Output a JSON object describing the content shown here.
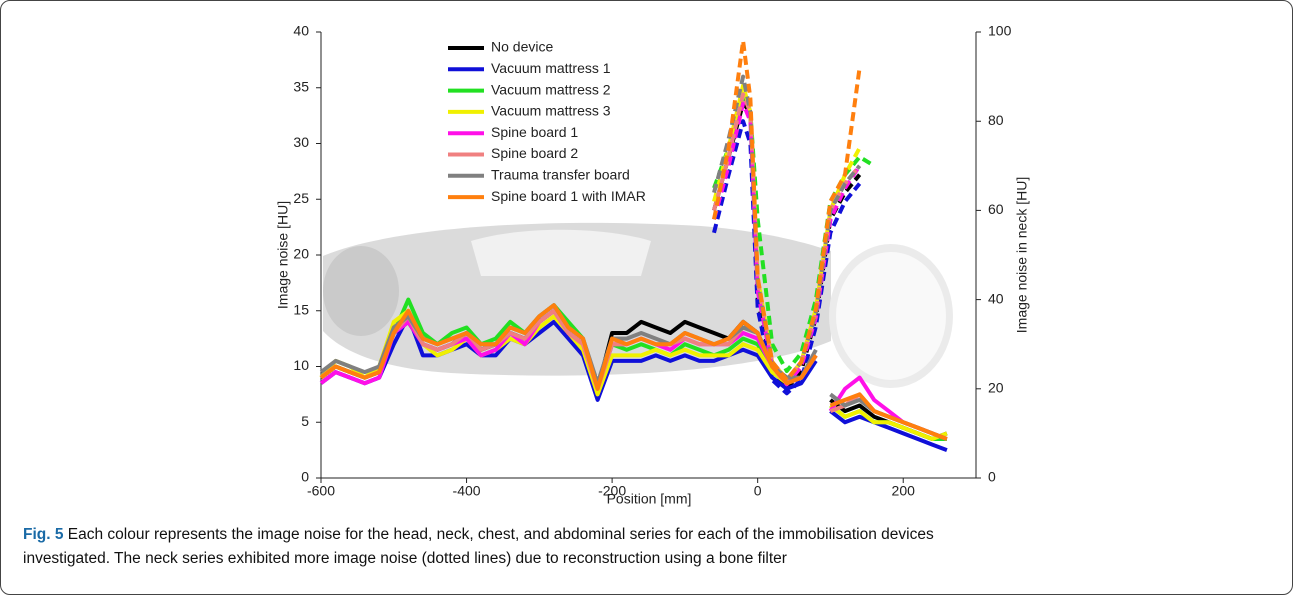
{
  "chart_data": {
    "type": "line",
    "xlabel": "Position [mm]",
    "ylabel": "Image noise [HU]",
    "y2label": "Image noise in neck [HU]",
    "xlim": [
      -600,
      300
    ],
    "xticks": [
      -600,
      -400,
      -200,
      0,
      200
    ],
    "ylim": [
      0,
      40
    ],
    "yticks": [
      0,
      5,
      10,
      15,
      20,
      25,
      30,
      35,
      40
    ],
    "y2lim": [
      0,
      100
    ],
    "y2ticks": [
      0,
      20,
      40,
      60,
      80,
      100
    ],
    "x": [
      -600,
      -580,
      -560,
      -540,
      -520,
      -500,
      -480,
      -460,
      -440,
      -420,
      -400,
      -380,
      -360,
      -340,
      -320,
      -300,
      -280,
      -260,
      -240,
      -220,
      -200,
      -180,
      -160,
      -140,
      -120,
      -100,
      -80,
      -60,
      -40,
      -20,
      0,
      20,
      40,
      60,
      80,
      90,
      100,
      120,
      140,
      160,
      180,
      200,
      220,
      240,
      260
    ],
    "neck_x": [
      -60,
      -40,
      -20,
      -10,
      0,
      20,
      40,
      60,
      80,
      100,
      120,
      140,
      160
    ],
    "legend": "upper left",
    "series": [
      {
        "name": "No device",
        "color": "#000000",
        "values": [
          9,
          10,
          9.5,
          9,
          9.5,
          13,
          14,
          12,
          11.5,
          12,
          13,
          11.5,
          12,
          13,
          12.5,
          14,
          15,
          13,
          12,
          8,
          13,
          13,
          14,
          13.5,
          13,
          14,
          13.5,
          13,
          12.5,
          14,
          13,
          10,
          9,
          9,
          11,
          null,
          7,
          6,
          6.5,
          5.5,
          5,
          4.5,
          4,
          3.5,
          4
        ],
        "neck_values": [
          60,
          72,
          84,
          82,
          40,
          24,
          20,
          24,
          36,
          58,
          64,
          68,
          null
        ]
      },
      {
        "name": "Vacuum mattress 1",
        "color": "#1010d8",
        "values": [
          8.5,
          9.5,
          9,
          8.5,
          9,
          12,
          14.5,
          11,
          11,
          11.5,
          12,
          11,
          11,
          12.5,
          12,
          13,
          14,
          12.5,
          11,
          7,
          10.5,
          10.5,
          10.5,
          11,
          10.5,
          11,
          10.5,
          10.5,
          11,
          11.5,
          11,
          9,
          8,
          8.5,
          10.5,
          null,
          6,
          5,
          5.5,
          5,
          4.5,
          4,
          3.5,
          3,
          2.5
        ],
        "neck_values": [
          55,
          68,
          80,
          75,
          38,
          22,
          19,
          22,
          34,
          55,
          62,
          66,
          null
        ]
      },
      {
        "name": "Vacuum mattress 2",
        "color": "#22e022",
        "values": [
          9,
          10,
          9.5,
          9,
          9.5,
          13,
          16,
          13,
          12,
          13,
          13.5,
          12,
          12.5,
          14,
          13,
          14.5,
          15.5,
          14,
          12.5,
          8,
          12,
          11.5,
          12,
          11.5,
          11,
          12,
          11.5,
          11,
          11.5,
          12.5,
          12,
          9.5,
          8.5,
          9,
          11,
          null,
          6.5,
          5.5,
          6,
          5,
          5,
          4.5,
          4,
          3.5,
          3.5
        ],
        "neck_values": [
          65,
          74,
          86,
          82,
          58,
          30,
          24,
          28,
          40,
          62,
          68,
          72,
          70
        ]
      },
      {
        "name": "Vacuum mattress 3",
        "color": "#f0f000",
        "values": [
          9,
          10.5,
          10,
          9,
          10,
          14,
          15,
          12,
          11,
          11.5,
          12.5,
          11,
          11.5,
          12.5,
          12,
          13.5,
          14.5,
          13,
          11.5,
          7.5,
          11,
          11,
          11,
          11.5,
          11,
          11.5,
          11,
          11,
          11,
          12,
          11.5,
          9.5,
          8.5,
          9,
          11,
          null,
          6.5,
          5.5,
          6,
          5,
          5,
          4.5,
          4,
          3.5,
          4
        ],
        "neck_values": [
          62,
          74,
          88,
          82,
          45,
          26,
          22,
          26,
          38,
          60,
          68,
          74,
          null
        ]
      },
      {
        "name": "Spine board 1",
        "color": "#ff10e8",
        "values": [
          8.5,
          9.5,
          9,
          8.5,
          9,
          13,
          14,
          12,
          11.5,
          12,
          12.5,
          11,
          11.5,
          13,
          12,
          14,
          15,
          13,
          12,
          8,
          12,
          12,
          12.5,
          12,
          11.5,
          12.5,
          12,
          12,
          12,
          13,
          12.5,
          10,
          8.5,
          9,
          11,
          null,
          6,
          8,
          9,
          7,
          6,
          5,
          4.5,
          4,
          3.5
        ],
        "neck_values": [
          58,
          70,
          84,
          80,
          42,
          25,
          21,
          25,
          36,
          58,
          65,
          70,
          null
        ]
      },
      {
        "name": "Spine board 2",
        "color": "#f08080",
        "values": [
          9,
          10,
          9.5,
          9,
          9.5,
          13,
          14.5,
          12,
          11.5,
          12,
          13,
          11.5,
          12,
          13,
          12.5,
          14,
          15,
          13,
          12,
          8,
          12,
          12,
          12.5,
          12,
          12,
          12.5,
          12,
          12,
          12,
          13.5,
          13,
          10,
          8.5,
          9,
          11,
          null,
          6,
          6.5,
          7.5,
          6,
          5.5,
          5,
          4.5,
          4,
          3.5
        ],
        "neck_values": [
          60,
          72,
          86,
          82,
          44,
          26,
          22,
          26,
          37,
          60,
          66,
          70,
          null
        ]
      },
      {
        "name": "Trauma transfer board",
        "color": "#808080",
        "values": [
          9.5,
          10.5,
          10,
          9.5,
          10,
          13.5,
          14.5,
          12.5,
          12,
          12.5,
          13,
          12,
          12,
          13.5,
          13,
          14.5,
          15.5,
          13.5,
          12.5,
          8.5,
          12.5,
          12.5,
          13,
          12.5,
          12,
          13,
          12.5,
          12,
          12.5,
          13.5,
          13,
          10,
          9,
          9,
          11.5,
          null,
          7.5,
          6.5,
          7,
          6,
          5.5,
          5,
          4.5,
          4,
          3.5
        ],
        "neck_values": [
          64,
          76,
          90,
          82,
          44,
          26,
          22,
          26,
          37,
          60,
          66,
          70,
          null
        ]
      },
      {
        "name": "Spine board 1 with IMAR",
        "color": "#ff7f0e",
        "values": [
          9,
          10,
          9.5,
          9,
          9.5,
          13,
          15,
          12.5,
          12,
          12.5,
          13,
          12,
          12,
          13.5,
          13,
          14.5,
          15.5,
          13.5,
          12.5,
          8,
          12.5,
          12,
          12.5,
          12,
          12,
          13,
          12.5,
          12,
          12.5,
          14,
          13,
          10,
          8.5,
          9,
          11,
          null,
          6.5,
          7,
          7.5,
          6,
          5.5,
          5,
          4.5,
          4,
          3.5
        ],
        "neck_values": [
          58,
          74,
          98,
          85,
          45,
          26,
          22,
          26,
          38,
          62,
          68,
          92,
          null
        ]
      }
    ]
  },
  "caption": {
    "label": "Fig. 5",
    "text": "Each colour represents the image noise for the head, neck, chest, and abdominal series for each of the immobilisation devices investigated. The neck series exhibited more image noise (dotted lines) due to reconstruction using a bone filter"
  }
}
